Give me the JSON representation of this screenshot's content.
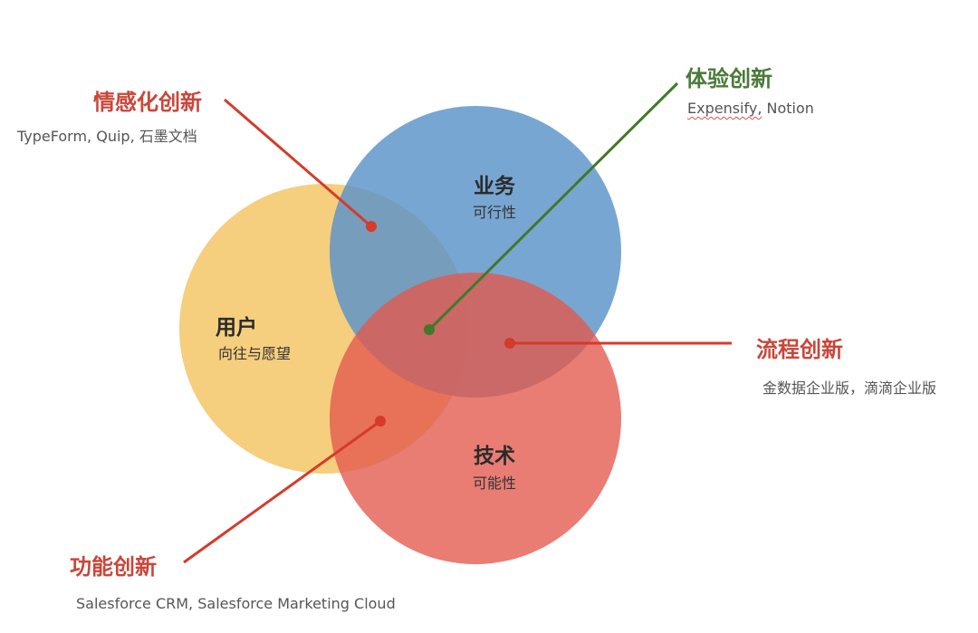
{
  "circles": {
    "user": {
      "title": "用户",
      "subtitle": "向往与愿望",
      "color": "#f3c25e"
    },
    "business": {
      "title": "业务",
      "subtitle": "可行性",
      "color": "#5a93c8"
    },
    "technology": {
      "title": "技术",
      "subtitle": "可能性",
      "color": "#e3594b"
    }
  },
  "categories": {
    "emotional": {
      "title": "情感化创新",
      "examples": "TypeForm, Quip, 石墨文档",
      "color": "#c8473a"
    },
    "experience": {
      "title": "体验创新",
      "examples_part1": "Expensify,",
      "examples_part2": " Notion",
      "color": "#4a7a3a"
    },
    "process": {
      "title": "流程创新",
      "examples": "金数据企业版，滴滴企业版",
      "color": "#c8473a"
    },
    "functional": {
      "title": "功能创新",
      "examples": "Salesforce CRM, Salesforce Marketing Cloud",
      "color": "#c8473a"
    }
  },
  "colors": {
    "red_line": "#d63a2a",
    "green_line": "#3f7a2a"
  }
}
